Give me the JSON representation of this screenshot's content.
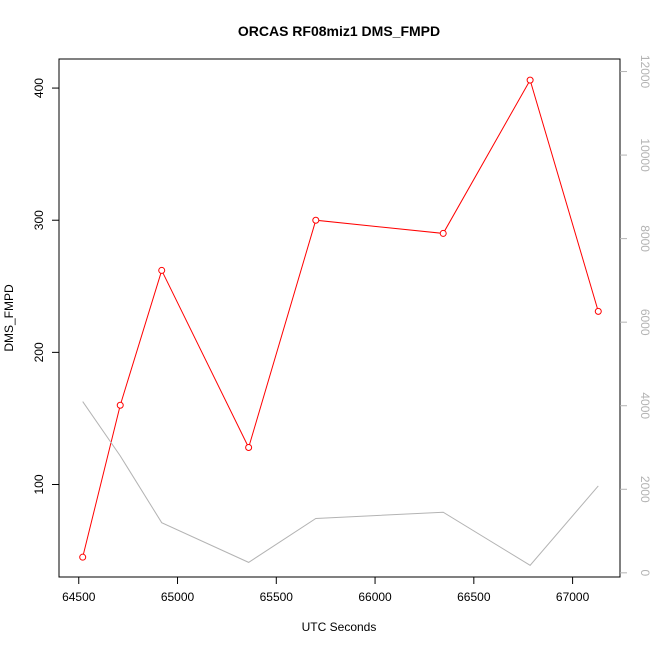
{
  "chart_data": {
    "type": "line",
    "title": "ORCAS RF08miz1 DMS_FMPD",
    "xlabel": "UTC Seconds",
    "ylabel": "DMS_FMPD",
    "xlim": [
      64400,
      67240
    ],
    "ylim": [
      30,
      422
    ],
    "y2lim": [
      -100,
      12300
    ],
    "x_ticks": [
      64500,
      65000,
      65500,
      66000,
      66500,
      67000
    ],
    "y_ticks": [
      100,
      200,
      300,
      400
    ],
    "y2_ticks": [
      0,
      2000,
      4000,
      6000,
      8000,
      10000,
      12000
    ],
    "series": [
      {
        "axis": "left",
        "color": "#ff0000",
        "markers": true,
        "x": [
          64520,
          64710,
          64920,
          65360,
          65700,
          66345,
          66785,
          67130
        ],
        "y": [
          45,
          160,
          262,
          128,
          300,
          290,
          406,
          231
        ]
      },
      {
        "axis": "right",
        "color": "#b3b3b3",
        "markers": false,
        "x": [
          64520,
          64710,
          64920,
          65360,
          65700,
          66345,
          66785,
          67130
        ],
        "y": [
          4100,
          2800,
          1200,
          250,
          1300,
          1450,
          180,
          2080
        ]
      }
    ]
  }
}
